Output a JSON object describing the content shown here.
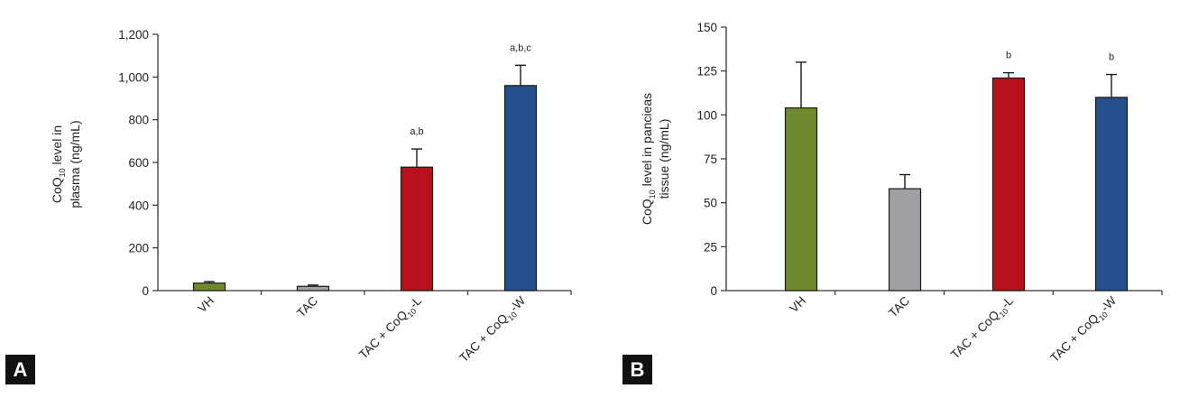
{
  "chart_data": [
    {
      "type": "bar",
      "panel_label": "A",
      "ylabel": {
        "pre": "CoQ",
        "sub": "10",
        "post": " level in",
        "line2": "plasma (ng/mL)"
      },
      "ylim": [
        0,
        1200
      ],
      "yticks": [
        "0",
        "200",
        "400",
        "600",
        "800",
        "1,000",
        "1,200"
      ],
      "ytick_values": [
        0,
        200,
        400,
        600,
        800,
        1000,
        1200
      ],
      "categories": [
        {
          "pre": "VH",
          "sub": "",
          "post": ""
        },
        {
          "pre": "TAC",
          "sub": "",
          "post": ""
        },
        {
          "pre": "TAC + CoQ",
          "sub": "10",
          "post": "-L"
        },
        {
          "pre": "TAC + CoQ",
          "sub": "10",
          "post": "-W"
        }
      ],
      "values": [
        35,
        20,
        578,
        960
      ],
      "errors": [
        7,
        6,
        85,
        95
      ],
      "annotations": [
        "",
        "",
        "a,b",
        "a,b,c"
      ],
      "colors": [
        "#6f8a2c",
        "#a0a0a4",
        "#b7121c",
        "#254f8a"
      ]
    },
    {
      "type": "bar",
      "panel_label": "B",
      "ylabel": {
        "pre": "CoQ",
        "sub": "10",
        "post": " level in pancieas",
        "line2": "tissue (ng/mL)"
      },
      "ylim": [
        0,
        150
      ],
      "yticks": [
        "0",
        "25",
        "50",
        "75",
        "100",
        "125",
        "150"
      ],
      "ytick_values": [
        0,
        25,
        50,
        75,
        100,
        125,
        150
      ],
      "categories": [
        {
          "pre": "VH",
          "sub": "",
          "post": ""
        },
        {
          "pre": "TAC",
          "sub": "",
          "post": ""
        },
        {
          "pre": "TAC + CoQ",
          "sub": "10",
          "post": "-L"
        },
        {
          "pre": "TAC + CoQ",
          "sub": "10",
          "post": "-W"
        }
      ],
      "values": [
        104,
        58,
        121,
        110
      ],
      "errors": [
        26,
        8,
        3,
        13
      ],
      "annotations": [
        "",
        "",
        "b",
        "b"
      ],
      "colors": [
        "#6f8a2c",
        "#a0a0a4",
        "#b7121c",
        "#254f8a"
      ]
    }
  ]
}
